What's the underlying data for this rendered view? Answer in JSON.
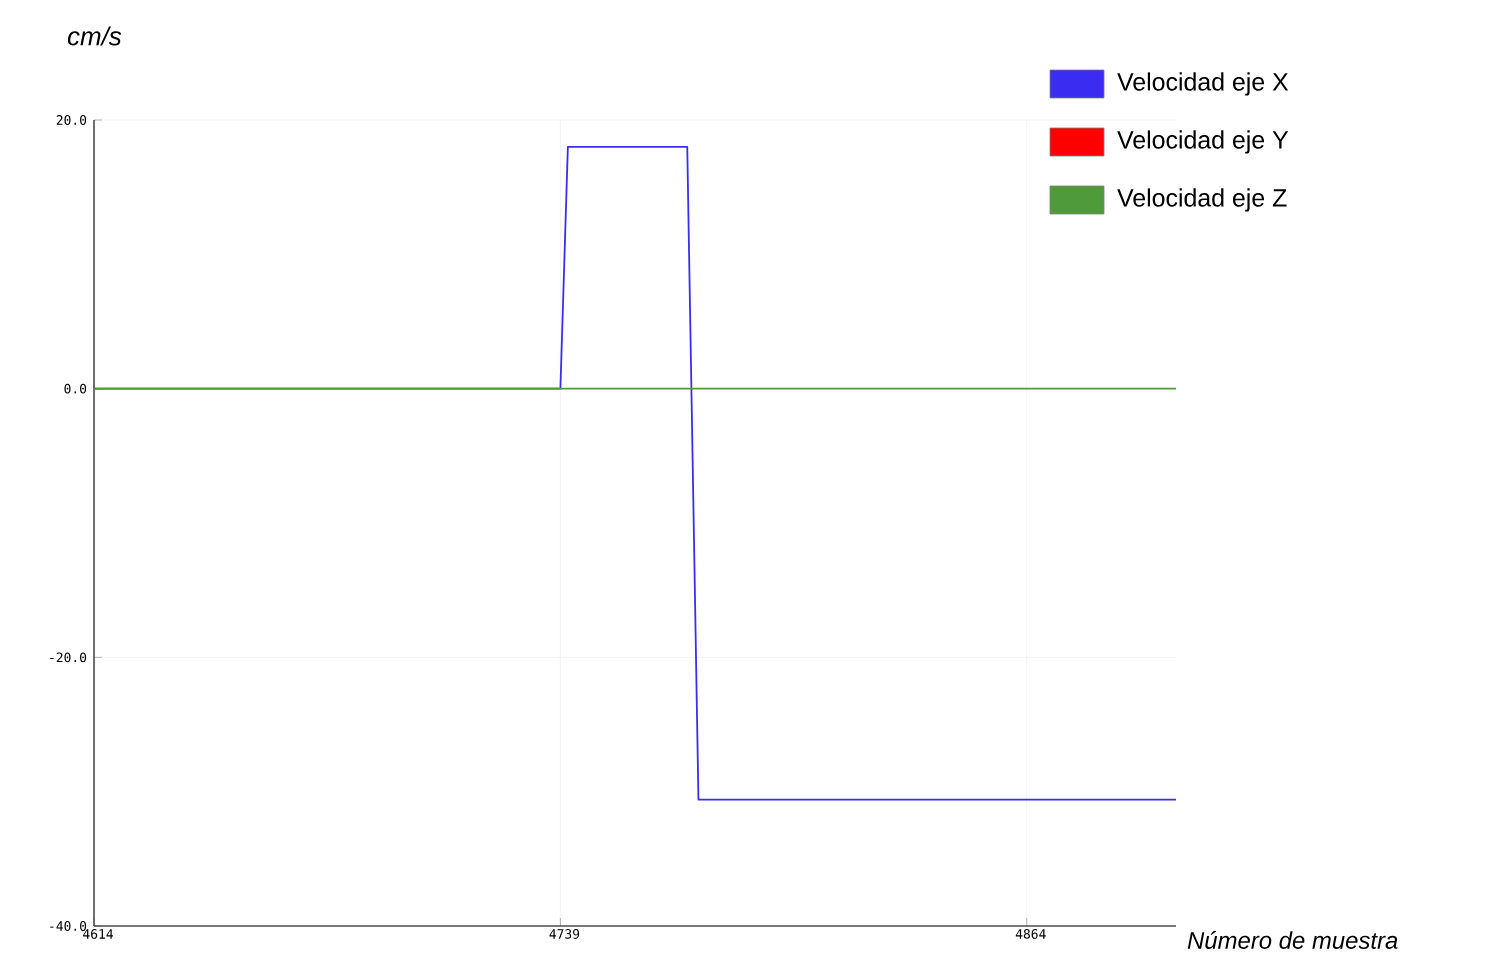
{
  "chart_data": {
    "type": "line",
    "xlabel": "Número de muestra",
    "ylabel": "cm/s",
    "xlim": [
      4614,
      4904
    ],
    "xticks": [
      4614,
      4739,
      4864
    ],
    "ylim": [
      -40,
      20
    ],
    "yticks": [
      {
        "value": -40,
        "label": "-40.0"
      },
      {
        "value": -20,
        "label": "-20.0"
      },
      {
        "value": 0,
        "label": "0.0"
      },
      {
        "value": 20,
        "label": "20.0"
      }
    ],
    "grid": true,
    "legend": "top right",
    "line_style": "solid",
    "series": [
      {
        "name": "Velocidad eje X",
        "color": "#3a2cf0",
        "x": [
          4614,
          4739,
          4741,
          4773,
          4776,
          4904
        ],
        "values": [
          0,
          0,
          18,
          18,
          -30.6,
          -30.6
        ]
      },
      {
        "name": "Velocidad eje Y",
        "color": "#ff0000",
        "values": [
          null,
          null
        ]
      },
      {
        "name": "Velocidad eje Z",
        "color": "#4f9a3a",
        "x": [
          4614,
          4904
        ],
        "values": [
          0,
          0
        ]
      }
    ]
  }
}
